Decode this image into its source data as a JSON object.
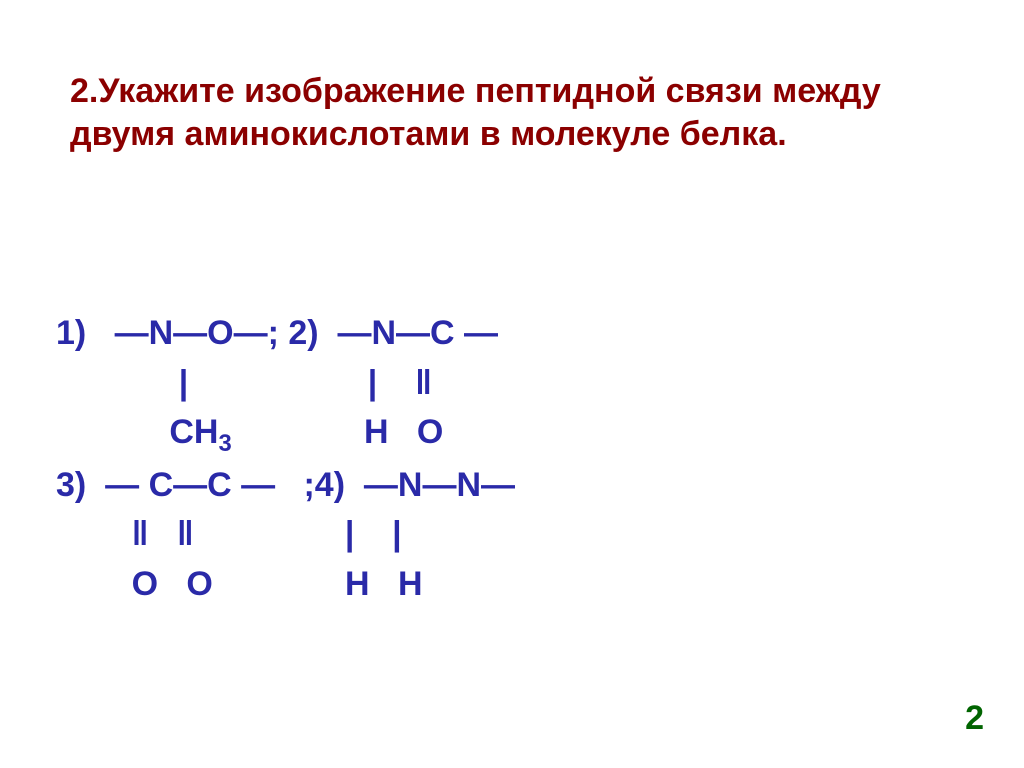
{
  "colors": {
    "background": "#ffffff",
    "title": "#8b0000",
    "body": "#2a2aa8",
    "page_num": "#006400"
  },
  "title": {
    "text": "2.Укажите изображение пептидной связи между двумя аминокислотами в молекуле белка.",
    "fontsize": 34,
    "font_weight": "bold"
  },
  "options": {
    "fontsize": 34,
    "font_weight": "bold",
    "line1": "1)   —N—O—; 2)  —N—C —",
    "line1_sub": "             |                   |    ‖",
    "line1_sub2": "            CH₃              H   O",
    "line3": "3)  — C—C —   ;4)  —N—N—",
    "line3_sub": "        ‖   ‖                |    |",
    "line3_sub2": "        O   O              H   H"
  },
  "page_number": "2"
}
